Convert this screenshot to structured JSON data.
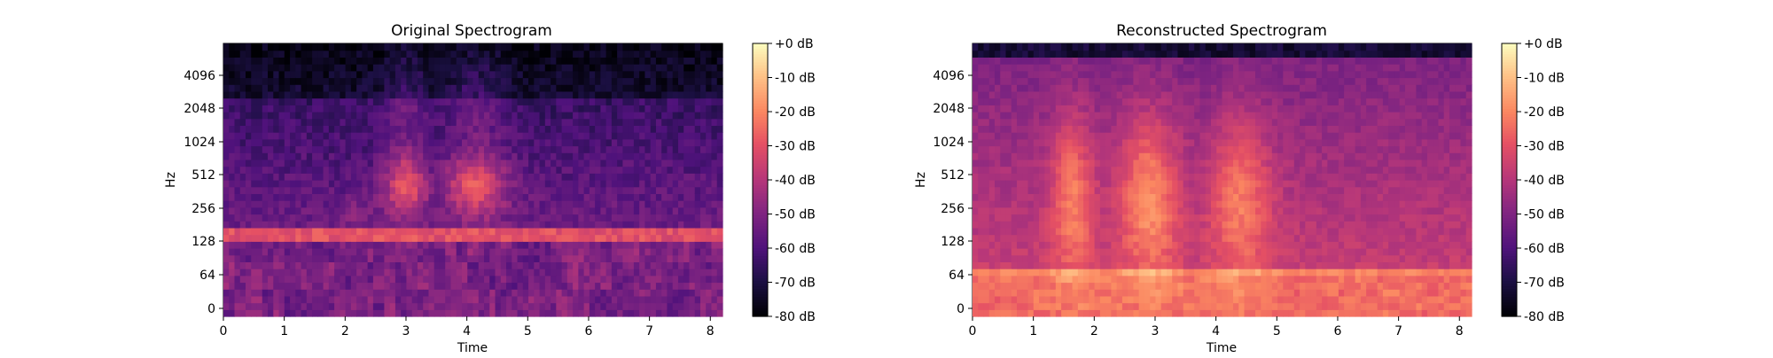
{
  "figure": {
    "background": "#ffffff",
    "colormap": "magma"
  },
  "chart_data": [
    {
      "type": "heatmap",
      "title": "Original Spectrogram",
      "xlabel": "Time",
      "ylabel": "Hz",
      "xlim": [
        0,
        8.2
      ],
      "x_ticks": [
        "0",
        "1",
        "2",
        "3",
        "4",
        "5",
        "6",
        "7",
        "8"
      ],
      "y_scale": "log",
      "y_ticks": [
        "0",
        "64",
        "128",
        "256",
        "512",
        "1024",
        "2048",
        "4096"
      ],
      "colorbar": {
        "ticks": [
          "+0 dB",
          "-10 dB",
          "-20 dB",
          "-30 dB",
          "-40 dB",
          "-50 dB",
          "-60 dB",
          "-70 dB",
          "-80 dB"
        ],
        "range_db": [
          -80,
          0
        ]
      },
      "features": [
        {
          "description": "steady tonal band",
          "freq_hz": 128,
          "level_db": -30
        },
        {
          "description": "speech activity bursts",
          "time_ranges": [
            [
              2.7,
              3.3
            ],
            [
              3.8,
              4.6
            ]
          ],
          "freq_range_hz": [
            200,
            800
          ],
          "peak_db": -15
        }
      ]
    },
    {
      "type": "heatmap",
      "title": "Reconstructed Spectrogram",
      "xlabel": "Time",
      "ylabel": "Hz",
      "xlim": [
        0,
        8.2
      ],
      "x_ticks": [
        "0",
        "1",
        "2",
        "3",
        "4",
        "5",
        "6",
        "7",
        "8"
      ],
      "y_scale": "log",
      "y_ticks": [
        "0",
        "64",
        "128",
        "256",
        "512",
        "1024",
        "2048",
        "4096"
      ],
      "colorbar": {
        "ticks": [
          "+0 dB",
          "-10 dB",
          "-20 dB",
          "-30 dB",
          "-40 dB",
          "-50 dB",
          "-60 dB",
          "-70 dB",
          "-80 dB"
        ],
        "range_db": [
          -80,
          0
        ]
      },
      "features": [
        {
          "description": "broadband low-frequency energy",
          "freq_range_hz": [
            0,
            90
          ],
          "level_db": -22
        },
        {
          "description": "bright activity regions",
          "time_ranges": [
            [
              1.4,
              1.9
            ],
            [
              2.4,
              3.3
            ],
            [
              4.0,
              4.8
            ]
          ],
          "freq_range_hz": [
            64,
            1024
          ],
          "peak_db": -8
        }
      ]
    }
  ]
}
